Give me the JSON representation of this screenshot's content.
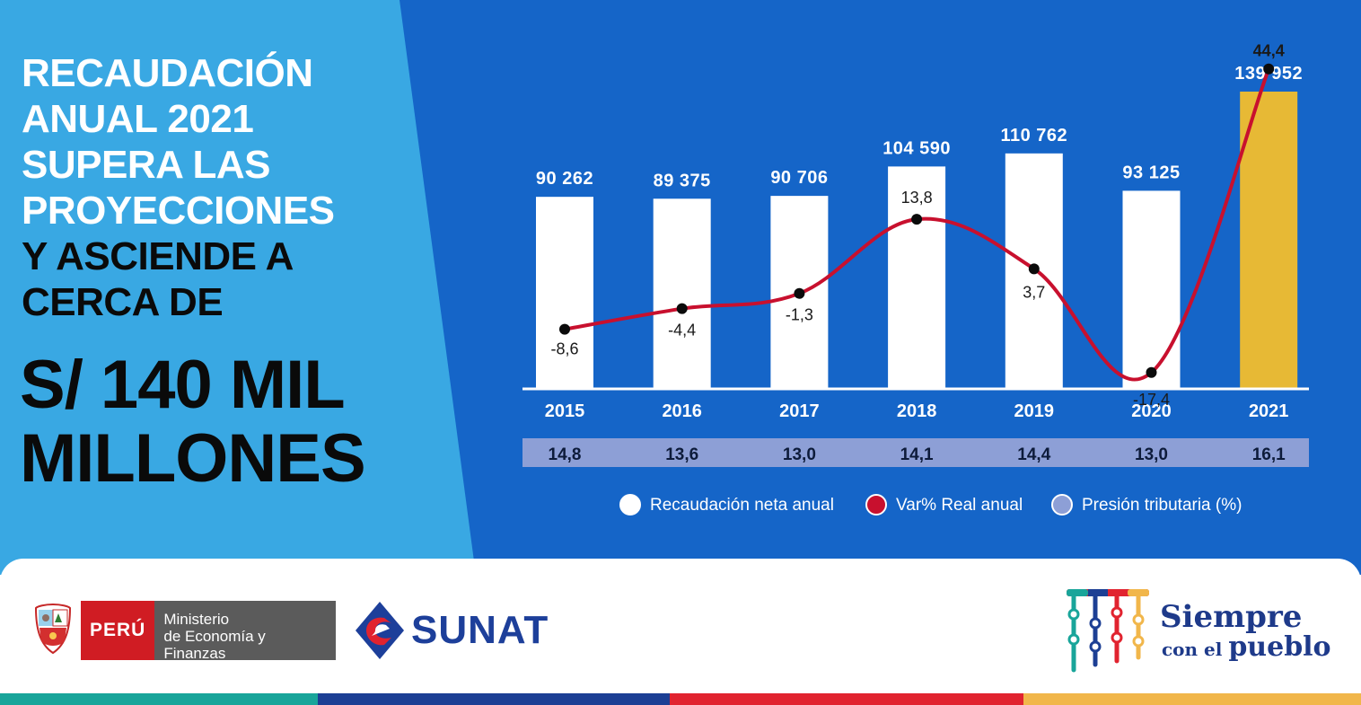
{
  "headline": {
    "lines_white": [
      "RECAUDACIÓN",
      "ANUAL 2021",
      "SUPERA LAS",
      "PROYECCIONES"
    ],
    "lines_dark": [
      "Y ASCIENDE A",
      "CERCA DE"
    ],
    "amount_line1": "S/ 140 MIL",
    "amount_line2": "MILLONES"
  },
  "colors": {
    "dark_blue": "#1565c8",
    "light_blue": "#39a8e3",
    "bar_white": "#ffffff",
    "bar_highlight": "#e7b935",
    "line_red": "#c8102e",
    "band_lavender": "#8d9fd6",
    "highlight_text": "#e7b935"
  },
  "chart_data": {
    "type": "bar",
    "categories": [
      "2015",
      "2016",
      "2017",
      "2018",
      "2019",
      "2020",
      "2021"
    ],
    "series": [
      {
        "name": "Recaudación neta anual",
        "type": "bar",
        "values": [
          90262,
          89375,
          90706,
          104590,
          110762,
          93125,
          139952
        ],
        "labels": [
          "90 262",
          "89 375",
          "90 706",
          "104 590",
          "110 762",
          "93 125",
          "139 952"
        ]
      },
      {
        "name": "Var% Real anual",
        "type": "line",
        "values": [
          -8.6,
          -4.4,
          -1.3,
          13.8,
          3.7,
          -17.4,
          44.4
        ],
        "labels": [
          "-8,6",
          "-4,4",
          "-1,3",
          "13,8",
          "3,7",
          "-17,4",
          "44,4"
        ]
      },
      {
        "name": "Presión tributaria (%)",
        "type": "table",
        "values": [
          14.8,
          13.6,
          13.0,
          14.1,
          14.4,
          13.0,
          16.1
        ],
        "labels": [
          "14,8",
          "13,6",
          "13,0",
          "14,1",
          "14,4",
          "13,0",
          "16,1"
        ]
      }
    ],
    "highlight_category": "2021",
    "legend_position": "bottom",
    "grid": false
  },
  "footer": {
    "peru_label": "PERÚ",
    "ministry_line1": "Ministerio",
    "ministry_line2": "de Economía y Finanzas",
    "sunat_label": "SUNAT",
    "siempre_line1": "Siempre",
    "siempre_line2a": "con el",
    "siempre_line2b": "pueblo",
    "stripe_colors": [
      "#19a59a",
      "#1c3f94",
      "#e1232f",
      "#f1b64a"
    ]
  }
}
